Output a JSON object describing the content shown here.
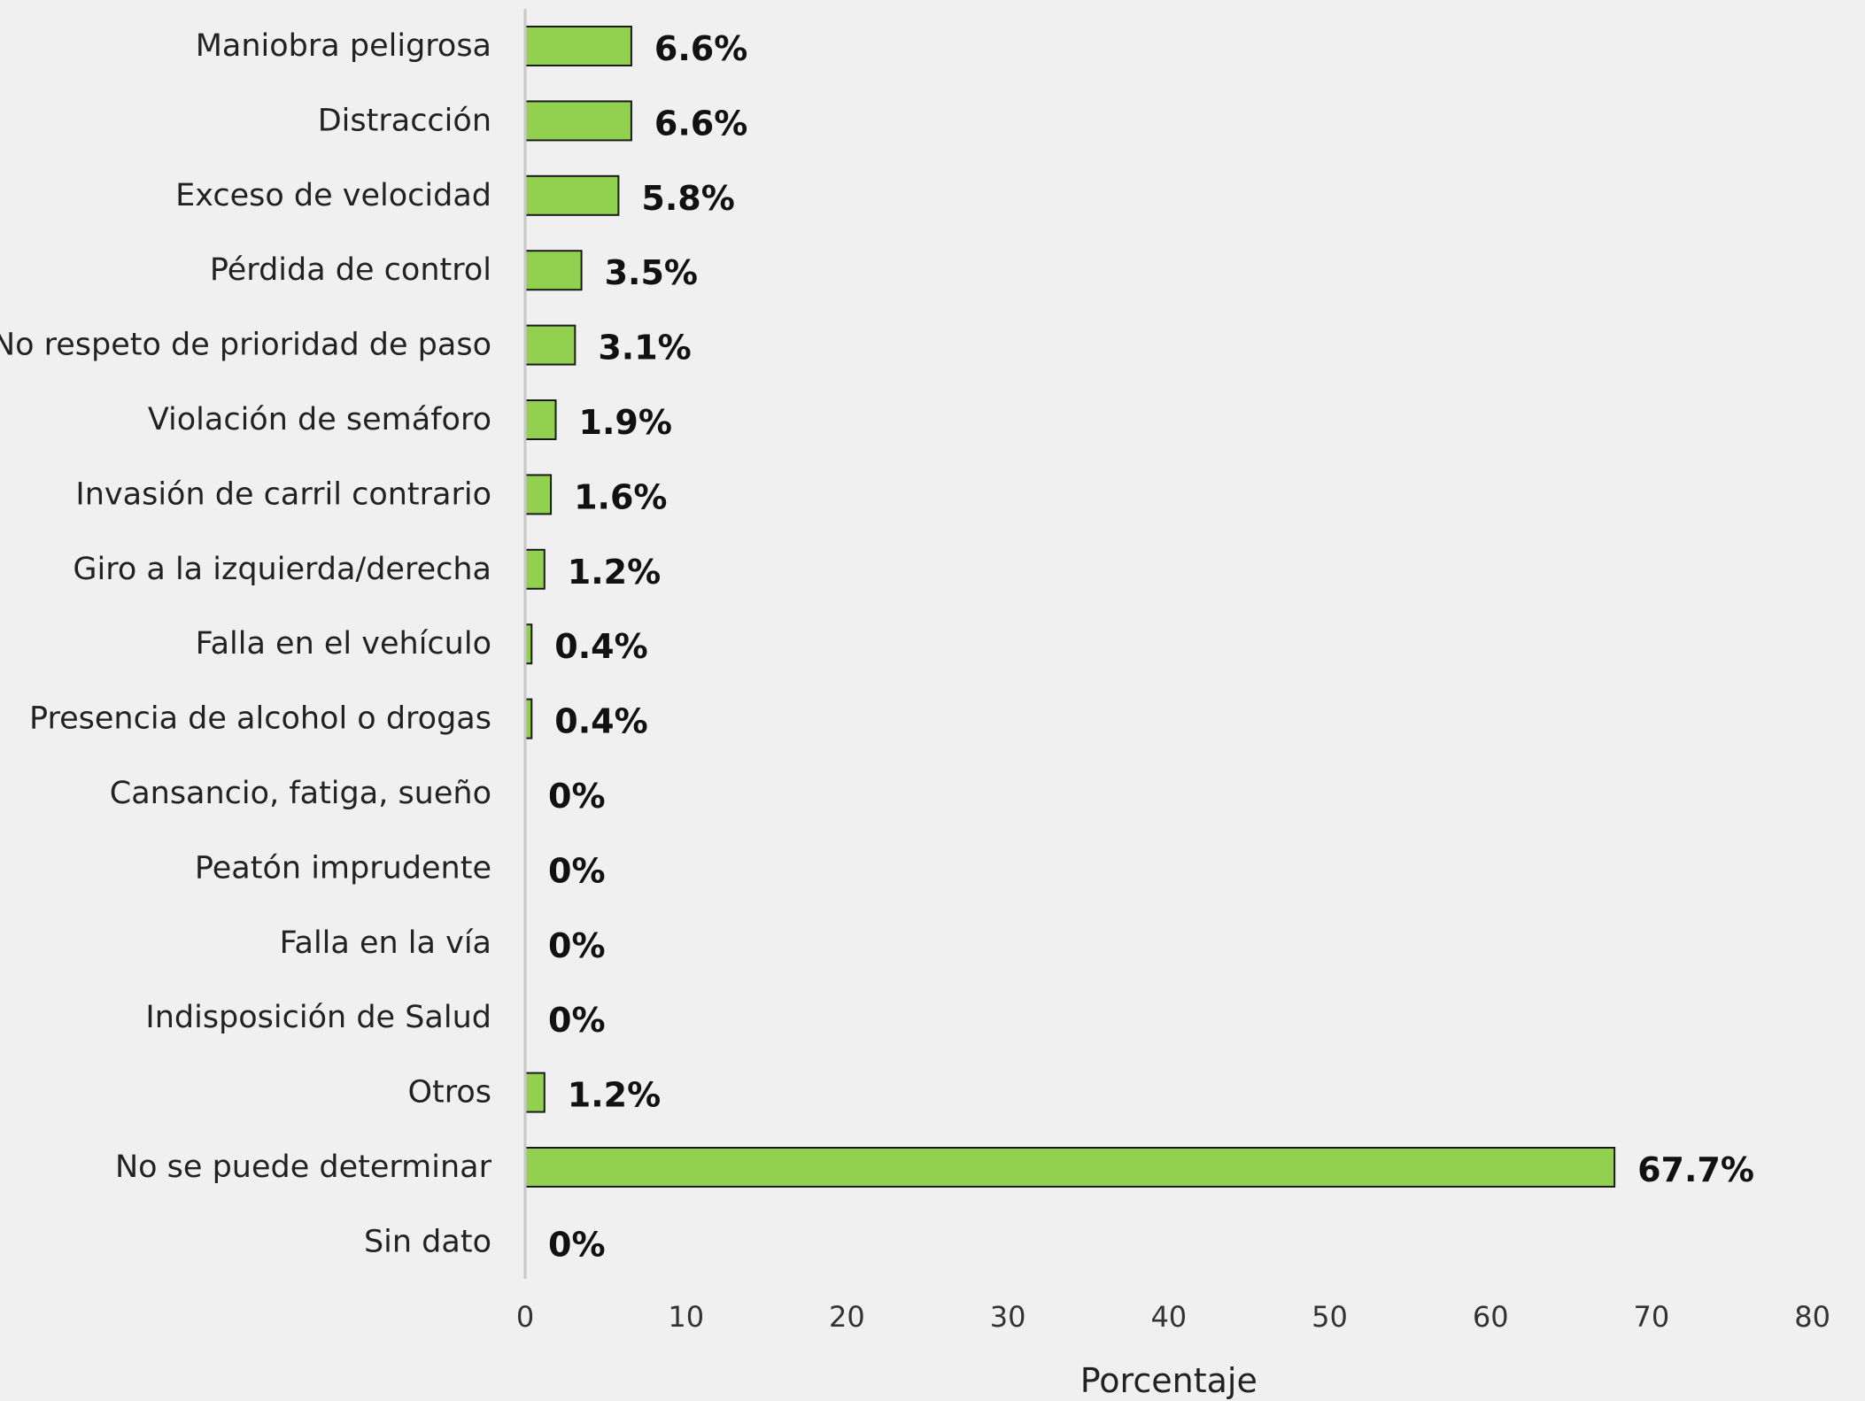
{
  "chart_data": {
    "type": "bar",
    "orientation": "horizontal",
    "title": "",
    "xlabel": "Porcentaje",
    "ylabel": "",
    "xlim": [
      0,
      80
    ],
    "x_ticks": [
      0,
      10,
      20,
      30,
      40,
      50,
      60,
      70,
      80
    ],
    "grid": false,
    "legend": "none",
    "bar_color": "#92d050",
    "bar_edge_color": "#1a1a1a",
    "categories": [
      "Maniobra peligrosa",
      "Distracción",
      "Exceso de velocidad",
      "Pérdida de control",
      "No respeto de prioridad de paso",
      "Violación de semáforo",
      "Invasión de carril contrario",
      "Giro a la izquierda/derecha",
      "Falla en el vehículo",
      "Presencia de alcohol o drogas",
      "Cansancio, fatiga, sueño",
      "Peatón imprudente",
      "Falla en la vía",
      "Indisposición de Salud",
      "Otros",
      "No se puede determinar",
      "Sin dato"
    ],
    "values": [
      6.6,
      6.6,
      5.8,
      3.5,
      3.1,
      1.9,
      1.6,
      1.2,
      0.4,
      0.4,
      0,
      0,
      0,
      0,
      1.2,
      67.7,
      0
    ],
    "data_labels": [
      "6.6%",
      "6.6%",
      "5.8%",
      "3.5%",
      "3.1%",
      "1.9%",
      "1.6%",
      "1.2%",
      "0.4%",
      "0.4%",
      "0%",
      "0%",
      "0%",
      "0%",
      "1.2%",
      "67.7%",
      "0%"
    ]
  }
}
